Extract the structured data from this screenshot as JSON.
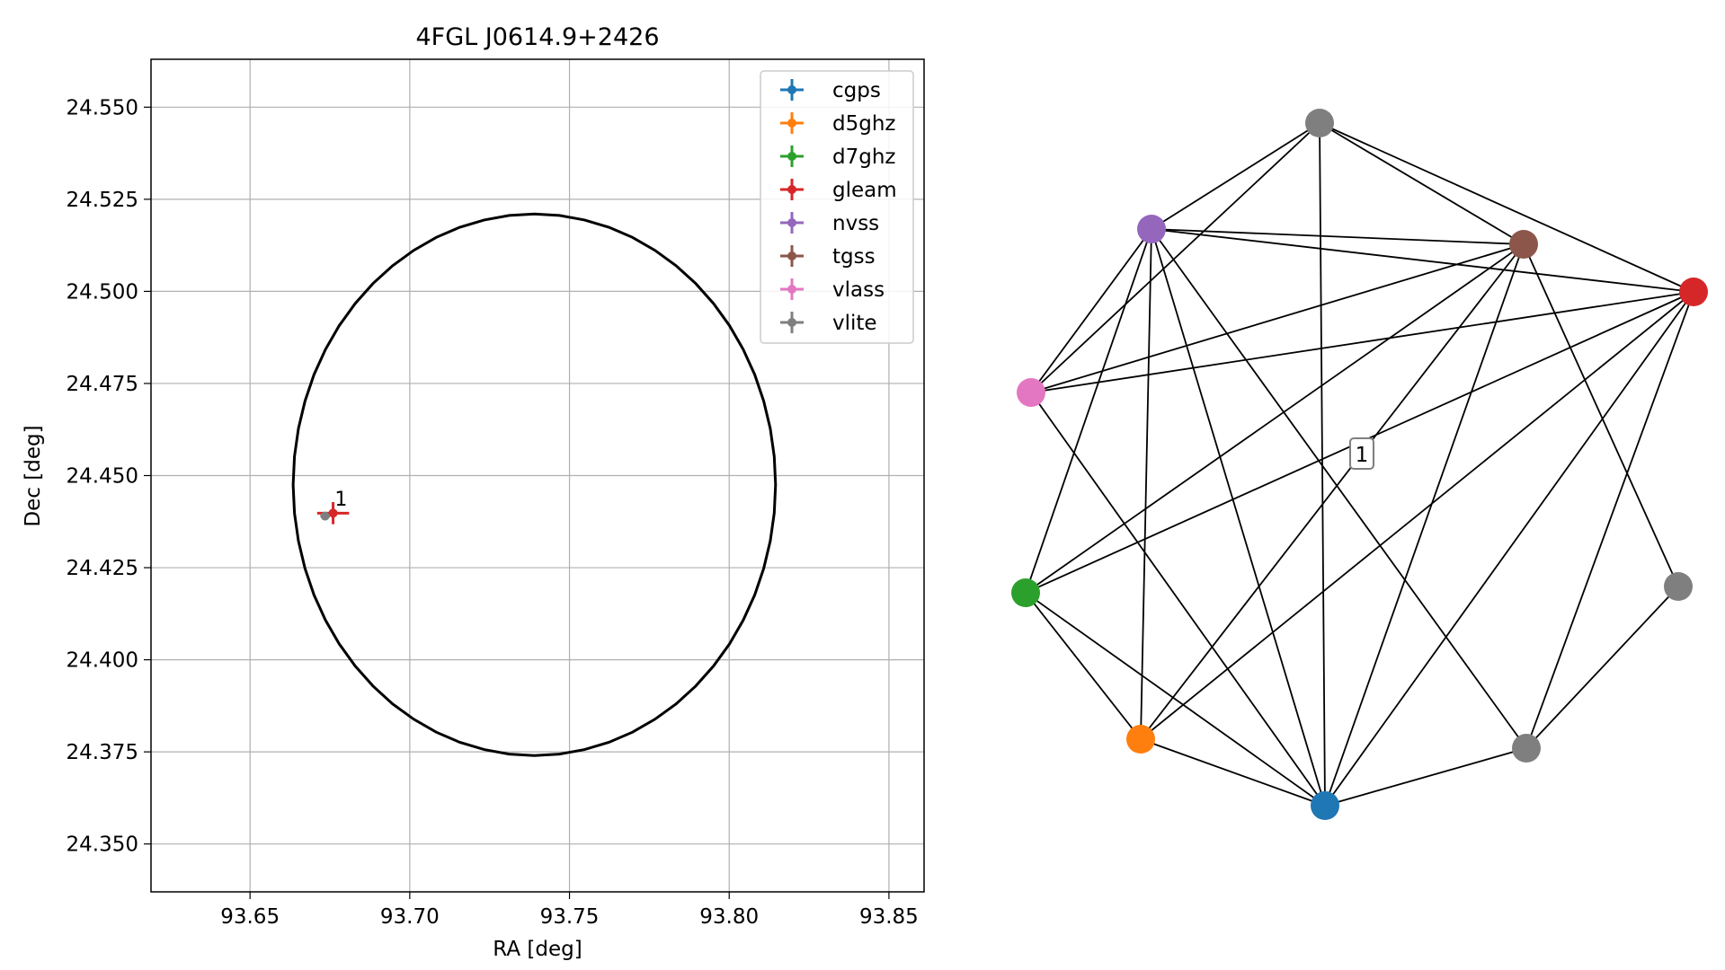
{
  "chart_data": [
    {
      "type": "scatter",
      "title": "4FGL J0614.9+2426",
      "xlabel": "RA [deg]",
      "ylabel": "Dec [deg]",
      "xlim": [
        93.619,
        93.861
      ],
      "ylim": [
        24.337,
        24.563
      ],
      "xticks": [
        93.65,
        93.7,
        93.75,
        93.8,
        93.85
      ],
      "xtick_labels": [
        "93.65",
        "93.70",
        "93.75",
        "93.80",
        "93.85"
      ],
      "yticks": [
        24.35,
        24.375,
        24.4,
        24.425,
        24.45,
        24.475,
        24.5,
        24.525,
        24.55
      ],
      "ytick_labels": [
        "24.350",
        "24.375",
        "24.400",
        "24.425",
        "24.450",
        "24.475",
        "24.500",
        "24.525",
        "24.550"
      ],
      "grid": true,
      "legend_position": "top-right",
      "ellipse": {
        "ra": 93.739,
        "dec": 24.4475,
        "semi_ra": 0.0755,
        "semi_dec": 0.0735
      },
      "series": [
        {
          "name": "cgps",
          "color": "#1f77b4",
          "points": []
        },
        {
          "name": "d5ghz",
          "color": "#ff7f0e",
          "points": []
        },
        {
          "name": "d7ghz",
          "color": "#2ca02c",
          "points": []
        },
        {
          "name": "gleam",
          "color": "#d62728",
          "points": [
            {
              "x": 93.676,
              "y": 24.4398,
              "xerr": 0.005,
              "yerr": 0.003
            }
          ]
        },
        {
          "name": "nvss",
          "color": "#9467bd",
          "points": []
        },
        {
          "name": "tgss",
          "color": "#8c564b",
          "points": []
        },
        {
          "name": "vlass",
          "color": "#e377c2",
          "points": []
        },
        {
          "name": "vlite",
          "color": "#7f7f7f",
          "points": [
            {
              "x": 93.6735,
              "y": 24.439,
              "xerr": 0.0015,
              "yerr": 0.001
            }
          ]
        }
      ],
      "annotations": [
        {
          "text": "1",
          "x": 93.6765,
          "y": 24.4418
        }
      ]
    },
    {
      "type": "network",
      "nodes": [
        {
          "id": "n0",
          "color": "#7f7f7f"
        },
        {
          "id": "n1",
          "color": "#8c564b"
        },
        {
          "id": "n2",
          "color": "#d62728"
        },
        {
          "id": "n3",
          "color": "#7f7f7f"
        },
        {
          "id": "n4",
          "color": "#7f7f7f"
        },
        {
          "id": "n5",
          "color": "#1f77b4"
        },
        {
          "id": "n6",
          "color": "#ff7f0e"
        },
        {
          "id": "n7",
          "color": "#2ca02c"
        },
        {
          "id": "n8",
          "color": "#e377c2"
        },
        {
          "id": "n9",
          "color": "#9467bd"
        }
      ],
      "edges": [
        [
          "n0",
          "n9"
        ],
        [
          "n0",
          "n1"
        ],
        [
          "n0",
          "n2"
        ],
        [
          "n0",
          "n8"
        ],
        [
          "n0",
          "n5"
        ],
        [
          "n9",
          "n1"
        ],
        [
          "n9",
          "n2"
        ],
        [
          "n9",
          "n8"
        ],
        [
          "n9",
          "n7"
        ],
        [
          "n9",
          "n6"
        ],
        [
          "n9",
          "n5"
        ],
        [
          "n9",
          "n4"
        ],
        [
          "n1",
          "n8"
        ],
        [
          "n1",
          "n7"
        ],
        [
          "n1",
          "n6"
        ],
        [
          "n1",
          "n5"
        ],
        [
          "n1",
          "n3"
        ],
        [
          "n2",
          "n8"
        ],
        [
          "n2",
          "n7"
        ],
        [
          "n2",
          "n6"
        ],
        [
          "n2",
          "n5"
        ],
        [
          "n2",
          "n4"
        ],
        [
          "n8",
          "n5"
        ],
        [
          "n7",
          "n6"
        ],
        [
          "n7",
          "n5"
        ],
        [
          "n5",
          "n6"
        ],
        [
          "n5",
          "n4"
        ],
        [
          "n4",
          "n3"
        ]
      ],
      "label": "1"
    }
  ]
}
